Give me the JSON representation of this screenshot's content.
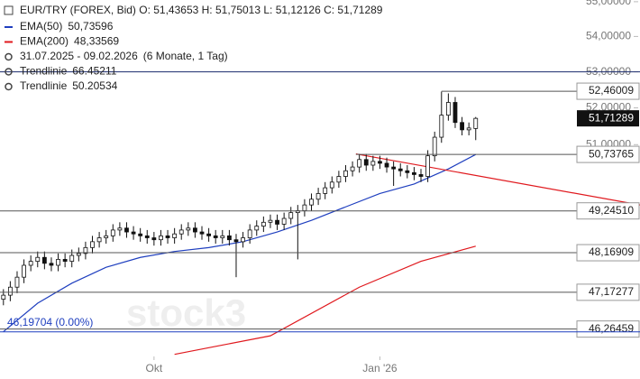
{
  "chart_data": {
    "type": "candlestick",
    "scale": "log",
    "ylim": [
      45.6,
      55.05
    ],
    "xlim": [
      -0.5,
      93
    ],
    "yticks": [
      {
        "value": 51,
        "label": "51,00000"
      },
      {
        "value": 52,
        "label": "52,00000"
      },
      {
        "value": 53,
        "label": "53,00000"
      },
      {
        "value": 54,
        "label": "54,00000"
      },
      {
        "value": 55,
        "label": "55,00000"
      }
    ],
    "xticks": [
      {
        "value": 22,
        "label": "Okt"
      },
      {
        "value": 55,
        "label": "Jan '26"
      }
    ],
    "header": "EUR/TRY (FOREX, Bid)  O: 51,43653  H: 51,75013  L: 51,12126  C: 51,71289",
    "legend": [
      {
        "name": "EMA(50)",
        "value": "50,73596",
        "color": "#1f3fbf"
      },
      {
        "name": "EMA(200)",
        "value": "48,33569",
        "color": "#e0191e"
      },
      {
        "name": "31.07.2025 - 09.02.2026",
        "value": "(6 Monate, 1 Tag)",
        "color": "#444"
      },
      {
        "name": "Trendlinie",
        "value": "66.45211",
        "color": "#444"
      },
      {
        "name": "Trendlinie",
        "value": "50.20534",
        "color": "#444"
      }
    ],
    "watermark": "stock3",
    "open": [
      47.0,
      47.1,
      47.3,
      47.55,
      47.85,
      47.95,
      48.05,
      47.9,
      47.85,
      48.0,
      47.95,
      48.1,
      48.15,
      48.3,
      48.45,
      48.55,
      48.6,
      48.75,
      48.8,
      48.7,
      48.65,
      48.6,
      48.55,
      48.5,
      48.6,
      48.55,
      48.65,
      48.75,
      48.8,
      48.7,
      48.65,
      48.6,
      48.55,
      48.6,
      48.5,
      48.45,
      48.55,
      48.75,
      48.85,
      48.95,
      49.0,
      48.9,
      49.05,
      49.2,
      49.25,
      49.4,
      49.55,
      49.7,
      49.85,
      50.0,
      50.15,
      50.3,
      50.4,
      50.6,
      50.45,
      50.55,
      50.5,
      50.4,
      50.35,
      50.3,
      50.25,
      50.2,
      50.15,
      50.7,
      51.2,
      51.8,
      52.15,
      51.6,
      51.4,
      51.43653
    ],
    "high": [
      47.25,
      47.45,
      47.7,
      48.0,
      48.1,
      48.2,
      48.2,
      48.05,
      48.15,
      48.15,
      48.25,
      48.3,
      48.45,
      48.6,
      48.7,
      48.75,
      48.9,
      48.95,
      48.95,
      48.85,
      48.8,
      48.75,
      48.7,
      48.75,
      48.75,
      48.8,
      48.9,
      48.95,
      48.95,
      48.85,
      48.8,
      48.75,
      48.75,
      48.75,
      48.65,
      48.7,
      48.9,
      49.0,
      49.1,
      49.15,
      49.15,
      49.2,
      49.35,
      49.4,
      49.55,
      49.7,
      49.85,
      50.0,
      50.15,
      50.3,
      50.45,
      50.55,
      50.75,
      50.75,
      50.7,
      50.7,
      50.65,
      50.55,
      50.5,
      50.45,
      50.4,
      50.35,
      50.85,
      51.35,
      52.45,
      52.4,
      52.3,
      51.75,
      51.6,
      51.75013
    ],
    "low": [
      46.85,
      46.95,
      47.15,
      47.4,
      47.7,
      47.8,
      47.75,
      47.7,
      47.7,
      47.8,
      47.8,
      47.95,
      48.0,
      48.15,
      48.3,
      48.4,
      48.45,
      48.6,
      48.55,
      48.5,
      48.45,
      48.4,
      48.35,
      48.35,
      48.4,
      48.4,
      48.5,
      48.6,
      48.55,
      48.5,
      48.45,
      48.4,
      48.4,
      48.35,
      47.55,
      48.3,
      48.4,
      48.6,
      48.7,
      48.8,
      48.75,
      48.75,
      48.9,
      48.0,
      49.1,
      49.25,
      49.4,
      49.55,
      49.7,
      49.85,
      50.0,
      50.15,
      50.25,
      50.3,
      50.3,
      50.35,
      50.25,
      49.9,
      50.15,
      50.1,
      50.05,
      50.0,
      50.0,
      50.55,
      51.05,
      51.65,
      51.45,
      51.25,
      51.25,
      51.12126
    ],
    "close": [
      47.1,
      47.3,
      47.55,
      47.85,
      47.95,
      48.05,
      47.9,
      47.85,
      48.0,
      47.95,
      48.1,
      48.15,
      48.3,
      48.45,
      48.55,
      48.6,
      48.75,
      48.8,
      48.7,
      48.65,
      48.6,
      48.55,
      48.5,
      48.6,
      48.55,
      48.65,
      48.75,
      48.8,
      48.7,
      48.65,
      48.6,
      48.55,
      48.6,
      48.5,
      48.45,
      48.55,
      48.75,
      48.85,
      48.95,
      49.0,
      48.9,
      49.05,
      49.2,
      49.25,
      49.4,
      49.55,
      49.7,
      49.85,
      50.0,
      50.15,
      50.3,
      50.4,
      50.6,
      50.45,
      50.55,
      50.5,
      50.4,
      50.35,
      50.3,
      50.25,
      50.2,
      50.15,
      50.7,
      51.2,
      51.8,
      52.15,
      51.6,
      51.4,
      51.45,
      51.71289
    ],
    "last_label": "51,71289",
    "lines": [
      {
        "name": "EMA(50)",
        "color": "#1f3fbf",
        "x": [
          0,
          5,
          10,
          15,
          20,
          25,
          30,
          35,
          40,
          45,
          50,
          55,
          60,
          65,
          69
        ],
        "values": [
          46.2,
          46.9,
          47.4,
          47.8,
          48.05,
          48.2,
          48.3,
          48.45,
          48.7,
          49.0,
          49.35,
          49.7,
          49.95,
          50.35,
          50.73596
        ]
      },
      {
        "name": "EMA(200)",
        "color": "#e0191e",
        "x": [
          25,
          39,
          52,
          61,
          69
        ],
        "values": [
          45.65,
          46.1,
          47.3,
          47.95,
          48.33569
        ]
      },
      {
        "name": "Trendlinie",
        "color": "#e0191e",
        "x": [
          51.5,
          93
        ],
        "values": [
          50.75,
          49.4
        ]
      }
    ],
    "levels": [
      {
        "value": 53,
        "from": -0.5,
        "color": "#1a2a6c"
      },
      {
        "value": 52.46009,
        "label": "52,46009",
        "from": 64,
        "color": "#555"
      },
      {
        "value": 50.73765,
        "label": "50,73765",
        "from": 51.5,
        "color": "#555"
      },
      {
        "value": 49.2451,
        "label": "49,24510",
        "from": -0.5,
        "color": "#555"
      },
      {
        "value": 48.16909,
        "label": "48,16909",
        "from": -0.5,
        "color": "#555"
      },
      {
        "value": 47.17277,
        "label": "47,17277",
        "from": -0.5,
        "color": "#555"
      },
      {
        "value": 46.26459,
        "label": "46,26459",
        "from": -0.5,
        "color": "#555"
      },
      {
        "value": 46.19704,
        "from": -0.5,
        "color": "#1f3fbf"
      }
    ],
    "start_label": "46,19704 (0.00%)"
  }
}
